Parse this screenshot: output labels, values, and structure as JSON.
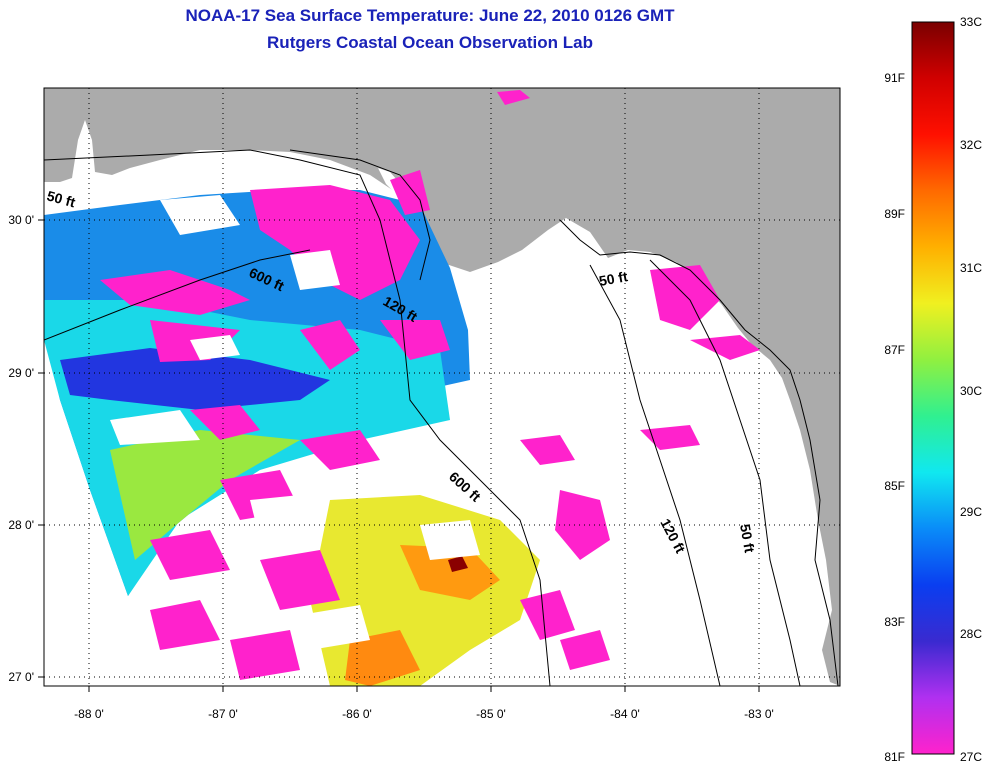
{
  "header": {
    "title_line1": "NOAA-17 Sea Surface Temperature:  June 22, 2010 0126 GMT",
    "title_line2": "Rutgers Coastal Ocean Observation Lab"
  },
  "map": {
    "lon_ticks": [
      "-88 0'",
      "-87 0'",
      "-86 0'",
      "-85 0'",
      "-84 0'",
      "-83 0'"
    ],
    "lat_ticks": [
      "30 0'",
      "29 0'",
      "28 0'",
      "27 0'"
    ],
    "depth_labels": [
      "50 ft",
      "600 ft",
      "120 ft",
      "50 ft",
      "600 ft",
      "120 ft",
      "50 ft"
    ]
  },
  "colorbar": {
    "celsius_labels": [
      "33C",
      "32C",
      "31C",
      "30C",
      "29C",
      "28C",
      "27C"
    ],
    "fahrenheit_labels": [
      "91F",
      "89F",
      "87F",
      "85F",
      "83F",
      "81F"
    ],
    "colors": [
      "#ff22cc",
      "#b030f0",
      "#3a2ad0",
      "#0a3ef0",
      "#0a8cf8",
      "#10e8f0",
      "#30f090",
      "#90f040",
      "#f0f020",
      "#ffb000",
      "#ff6a00",
      "#ff1000",
      "#d00000",
      "#7a0000"
    ]
  },
  "colors": {
    "land": "#ababab",
    "title": "#1a22b8"
  }
}
